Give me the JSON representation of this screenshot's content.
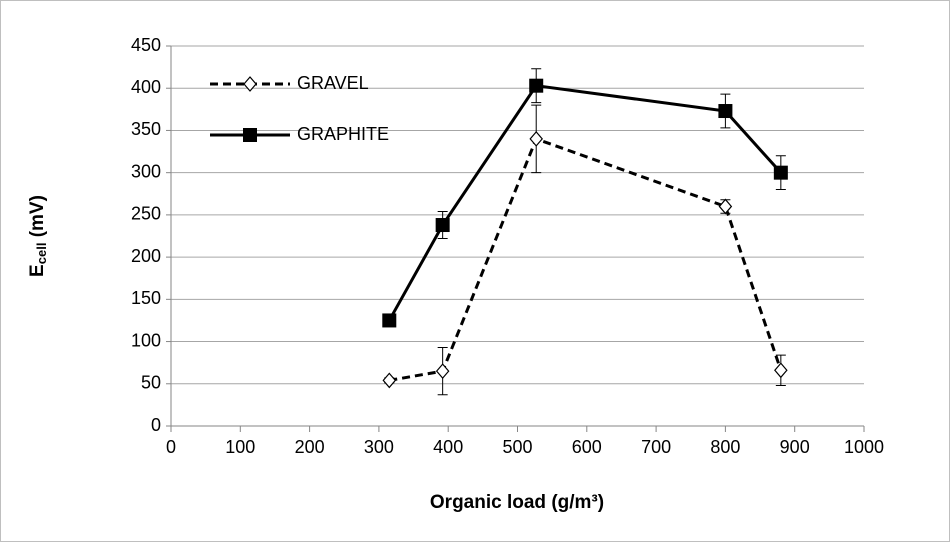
{
  "chart_data": {
    "type": "line",
    "xlabel": "Organic load (g/m³)",
    "ylabel": [
      "E",
      "cell",
      " (mV)"
    ],
    "xlim": [
      0,
      1000
    ],
    "xticks": [
      0,
      100,
      200,
      300,
      400,
      500,
      600,
      700,
      800,
      900,
      1000
    ],
    "ylim": [
      0,
      450
    ],
    "yticks": [
      0,
      50,
      100,
      150,
      200,
      250,
      300,
      350,
      400,
      450
    ],
    "grid": true,
    "legend": "upper left",
    "series": [
      {
        "name": "GRAVEL",
        "color": "#000000",
        "dash": true,
        "marker": "diamond",
        "x": [
          315,
          392,
          527,
          800,
          880
        ],
        "values": [
          54,
          65,
          340,
          260,
          66
        ],
        "errors": [
          3,
          28,
          40,
          8,
          18
        ]
      },
      {
        "name": "GRAPHITE",
        "color": "#000000",
        "dash": false,
        "marker": "square",
        "x": [
          315,
          392,
          527,
          800,
          880
        ],
        "values": [
          125,
          238,
          403,
          373,
          300
        ],
        "errors": [
          3,
          16,
          20,
          20,
          20
        ]
      }
    ]
  }
}
